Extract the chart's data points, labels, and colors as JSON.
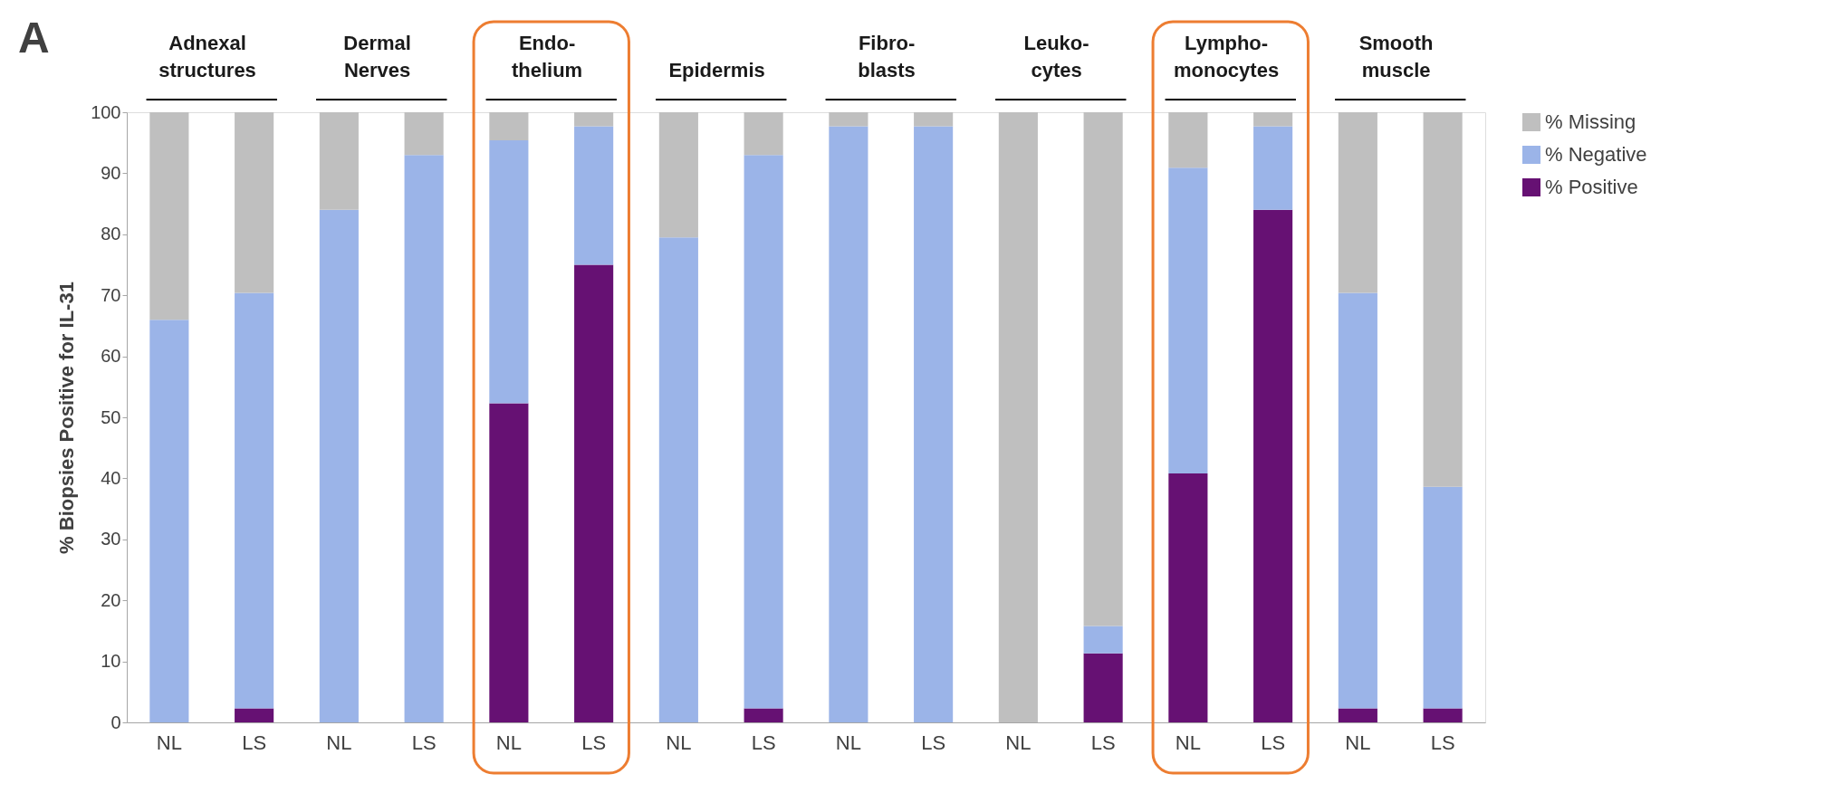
{
  "chart_data": {
    "type": "bar",
    "stacked": true,
    "ylabel": "% Biopsies Positive for IL-31",
    "categories": [
      "NL",
      "LS",
      "NL",
      "LS",
      "NL",
      "LS",
      "NL",
      "LS",
      "NL",
      "LS",
      "NL",
      "LS",
      "NL",
      "LS",
      "NL",
      "LS"
    ],
    "series": [
      {
        "name": "% Positive",
        "color": "#661173",
        "values": [
          0,
          2.3,
          0,
          0,
          52.3,
          75.0,
          0,
          2.3,
          0,
          0,
          0,
          11.3,
          40.8,
          84.0,
          2.3,
          2.3
        ]
      },
      {
        "name": "% Negative",
        "color": "#9bb4e8",
        "values": [
          66.0,
          68.1,
          84.0,
          93.0,
          43.1,
          22.7,
          79.5,
          90.7,
          97.7,
          97.7,
          0,
          4.5,
          50.1,
          13.7,
          68.1,
          36.3
        ]
      },
      {
        "name": "% Missing",
        "color": "#bfbfbf",
        "values": [
          34.0,
          29.6,
          16.0,
          7.0,
          4.6,
          2.3,
          20.5,
          7.0,
          2.3,
          2.3,
          100,
          84.2,
          9.1,
          2.3,
          29.6,
          61.4
        ]
      }
    ],
    "ylim": [
      0,
      100
    ],
    "yticks": [
      0,
      10,
      20,
      30,
      40,
      50,
      60,
      70,
      80,
      90,
      100
    ],
    "grid": false,
    "legend": "right",
    "annotations": [
      "A",
      "Adnexal\nstructures",
      "Dermal\nNerves",
      "Endo-\nthelium",
      "Epidermis",
      "Fibro-\nblasts",
      "Leuko-\ncytes",
      "Lympho-\nmonocytes",
      "Smooth\nmuscle"
    ]
  }
}
